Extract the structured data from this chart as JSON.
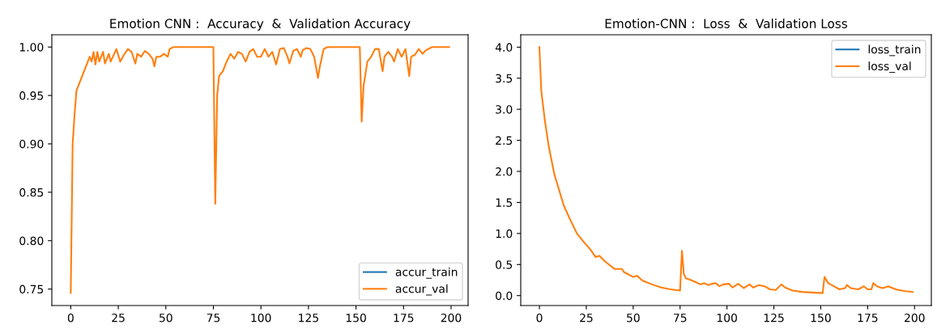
{
  "chart_data": [
    {
      "type": "line",
      "title": "Emotion CNN :  Accuracy  &  Validation Accuracy",
      "legend": "lower right",
      "grid": false,
      "xlim": [
        -9.95,
        208.95
      ],
      "xticks": [
        0,
        25,
        50,
        75,
        100,
        125,
        150,
        175,
        200
      ],
      "ylim": [
        0.733,
        1.0127
      ],
      "yticks": [
        {
          "value": 0.75,
          "label": "0.75"
        },
        {
          "value": 0.8,
          "label": "0.80"
        },
        {
          "value": 0.85,
          "label": "0.85"
        },
        {
          "value": 0.9,
          "label": "0.90"
        },
        {
          "value": 0.95,
          "label": "0.95"
        },
        {
          "value": 1.0,
          "label": "1.00"
        }
      ],
      "series": [
        {
          "name": "accur_train",
          "color": "#1f77b4"
        },
        {
          "name": "accur_val",
          "color": "#ff7f0e",
          "x": [
            0,
            1,
            2,
            3,
            4,
            6,
            8,
            10,
            11,
            12,
            13,
            14,
            15,
            17,
            18,
            20,
            21,
            24,
            26,
            28,
            30,
            32,
            34,
            35,
            37,
            39,
            41,
            43,
            44,
            45,
            47,
            49,
            51,
            52,
            54,
            75,
            76,
            77,
            78,
            80,
            82,
            84,
            86,
            88,
            90,
            92,
            94,
            96,
            98,
            100,
            102,
            104,
            106,
            108,
            110,
            112,
            114,
            115,
            117,
            119,
            121,
            122,
            124,
            126,
            128,
            130,
            131,
            133,
            135,
            152,
            153,
            154,
            156,
            158,
            160,
            162,
            164,
            165,
            167,
            169,
            170,
            172,
            174,
            176,
            178,
            179,
            181,
            183,
            185,
            187,
            190,
            199
          ],
          "values": [
            0.746,
            0.9,
            0.93,
            0.955,
            0.96,
            0.97,
            0.98,
            0.99,
            0.985,
            0.995,
            0.982,
            0.995,
            0.985,
            0.995,
            0.983,
            0.993,
            0.985,
            0.998,
            0.985,
            0.992,
            0.998,
            0.995,
            0.983,
            0.993,
            0.99,
            0.996,
            0.993,
            0.988,
            0.98,
            0.99,
            0.99,
            0.993,
            0.99,
            0.998,
            1.0,
            1.0,
            0.838,
            0.95,
            0.97,
            0.975,
            0.985,
            0.993,
            0.988,
            0.995,
            0.993,
            0.985,
            0.995,
            0.998,
            0.99,
            0.99,
            0.998,
            0.99,
            0.995,
            0.982,
            0.998,
            0.999,
            0.99,
            0.983,
            0.996,
            0.998,
            0.99,
            0.997,
            0.999,
            0.998,
            0.99,
            0.968,
            0.98,
            0.998,
            1.0,
            1.0,
            0.923,
            0.96,
            0.985,
            0.99,
            0.998,
            0.998,
            0.975,
            0.99,
            0.995,
            0.99,
            0.985,
            0.998,
            0.99,
            0.998,
            0.97,
            0.99,
            0.992,
            0.998,
            0.993,
            0.997,
            1.0,
            1.0
          ]
        }
      ]
    },
    {
      "type": "line",
      "title": "Emotion-CNN :  Loss  &  Validation Loss",
      "legend": "upper right",
      "grid": false,
      "xlim": [
        -9.95,
        208.95
      ],
      "xticks": [
        0,
        25,
        50,
        75,
        100,
        125,
        150,
        175,
        200
      ],
      "ylim": [
        -0.16,
        4.2
      ],
      "yticks": [
        {
          "value": 0,
          "label": "0.0"
        },
        {
          "value": 0.5,
          "label": "0.5"
        },
        {
          "value": 1,
          "label": "1.0"
        },
        {
          "value": 1.5,
          "label": "1.5"
        },
        {
          "value": 2,
          "label": "2.0"
        },
        {
          "value": 2.5,
          "label": "2.5"
        },
        {
          "value": 3,
          "label": "3.0"
        },
        {
          "value": 3.5,
          "label": "3.5"
        },
        {
          "value": 4,
          "label": "4.0"
        }
      ],
      "series": [
        {
          "name": "loss_train",
          "color": "#1f77b4"
        },
        {
          "name": "loss_val",
          "color": "#ff7f0e",
          "x": [
            0,
            1,
            3,
            5,
            8,
            10,
            13,
            16,
            20,
            24,
            27,
            30,
            32,
            35,
            40,
            44,
            45,
            50,
            52,
            55,
            60,
            65,
            70,
            75,
            76,
            77,
            78,
            80,
            83,
            86,
            88,
            90,
            92,
            94,
            96,
            98,
            101,
            103,
            106,
            109,
            112,
            114,
            117,
            120,
            123,
            126,
            129,
            131,
            135,
            140,
            145,
            151,
            152,
            154,
            157,
            160,
            163,
            164,
            166,
            170,
            173,
            175,
            177,
            178,
            180,
            183,
            186,
            190,
            195,
            199
          ],
          "values": [
            4.0,
            3.3,
            2.8,
            2.4,
            1.95,
            1.75,
            1.45,
            1.25,
            1.0,
            0.85,
            0.75,
            0.62,
            0.64,
            0.55,
            0.43,
            0.43,
            0.38,
            0.3,
            0.32,
            0.24,
            0.18,
            0.13,
            0.1,
            0.08,
            0.72,
            0.35,
            0.28,
            0.26,
            0.22,
            0.18,
            0.2,
            0.17,
            0.19,
            0.2,
            0.15,
            0.18,
            0.19,
            0.13,
            0.19,
            0.12,
            0.18,
            0.13,
            0.17,
            0.15,
            0.1,
            0.09,
            0.18,
            0.13,
            0.08,
            0.06,
            0.05,
            0.04,
            0.3,
            0.2,
            0.15,
            0.1,
            0.12,
            0.17,
            0.12,
            0.1,
            0.15,
            0.1,
            0.1,
            0.2,
            0.15,
            0.12,
            0.15,
            0.1,
            0.07,
            0.06
          ]
        }
      ]
    }
  ]
}
